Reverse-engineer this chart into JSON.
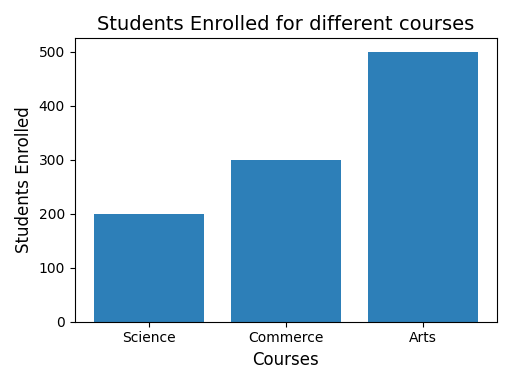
{
  "categories": [
    "Science",
    "Commerce",
    "Arts"
  ],
  "values": [
    200,
    300,
    500
  ],
  "bar_color": "#2d7fb8",
  "title": "Students Enrolled for different courses",
  "xlabel": "Courses",
  "ylabel": "Students Enrolled",
  "ylim": [
    0,
    525
  ],
  "title_fontsize": 14,
  "label_fontsize": 12,
  "fig_width": 5.12,
  "fig_height": 3.84
}
